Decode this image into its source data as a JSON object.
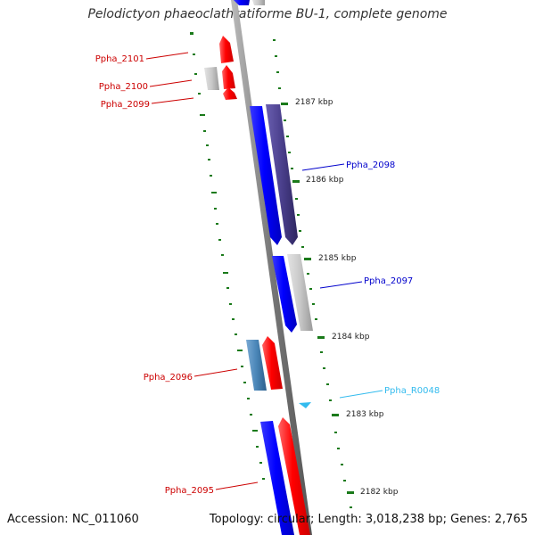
{
  "title": "Pelodictyon phaeoclathratiforme BU-1, complete genome",
  "accession": "Accession: NC_011060",
  "topology": "Topology: circular; Length: 3,018,238 bp; Genes: 2,765",
  "ticks": [
    "2187 kbp",
    "2186 kbp",
    "2185 kbp",
    "2184 kbp",
    "2183 kbp",
    "2182 kbp"
  ],
  "genes": [
    {
      "label": "Ppha_2101",
      "color": "#cc0000"
    },
    {
      "label": "Ppha_2100",
      "color": "#cc0000"
    },
    {
      "label": "Ppha_2099",
      "color": "#cc0000"
    },
    {
      "label": "Ppha_2098",
      "color": "#0000cc"
    },
    {
      "label": "Ppha_2097",
      "color": "#0000cc"
    },
    {
      "label": "Ppha_2096",
      "color": "#cc0000"
    },
    {
      "label": "Ppha_R0048",
      "color": "#33bbee"
    },
    {
      "label": "Ppha_2095",
      "color": "#cc0000"
    }
  ],
  "colors": {
    "forward": "#ff0000",
    "reverse": "#0000ff",
    "gray": "#c8c8c8",
    "purple": "#4a3f8c",
    "steel": "#4a86b8",
    "rna": "#33bbee",
    "tick": "#1a7a1a",
    "backbone": "#888888"
  }
}
